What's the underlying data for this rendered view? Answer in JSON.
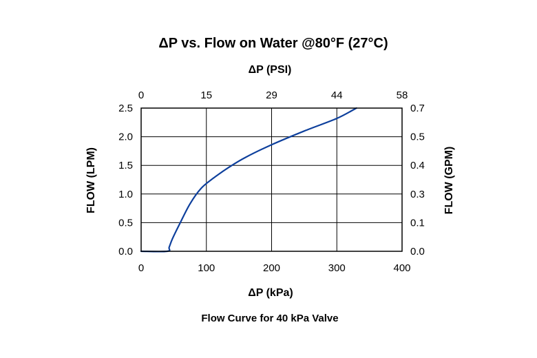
{
  "chart_data": {
    "type": "line",
    "title": "ΔP vs. Flow on Water @80°F (27°C)",
    "caption": "Flow Curve for 40 kPa Valve",
    "xlabel": "ΔP (kPa)",
    "x2label": "ΔP (PSI)",
    "ylabel": "FLOW (LPM)",
    "y2label": "FLOW (GPM)",
    "xlim": [
      0,
      400
    ],
    "ylim": [
      0,
      2.5
    ],
    "grid": true,
    "x_ticks": [
      "0",
      "100",
      "200",
      "300",
      "400"
    ],
    "x2_ticks": [
      "0",
      "15",
      "29",
      "44",
      "58"
    ],
    "y_ticks": [
      "0.0",
      "0.5",
      "1.0",
      "1.5",
      "2.0",
      "2.5"
    ],
    "y2_ticks": [
      "0.0",
      "0.1",
      "0.3",
      "0.4",
      "0.5",
      "0.7"
    ],
    "line_color": "#0d3f9c",
    "series": [
      {
        "x": [
          0,
          40,
          43,
          48,
          60,
          75,
          92,
          110,
          135,
          160,
          200,
          250,
          300,
          330
        ],
        "y": [
          0,
          0,
          0.07,
          0.22,
          0.5,
          0.83,
          1.1,
          1.27,
          1.47,
          1.64,
          1.86,
          2.1,
          2.32,
          2.5
        ]
      }
    ]
  }
}
